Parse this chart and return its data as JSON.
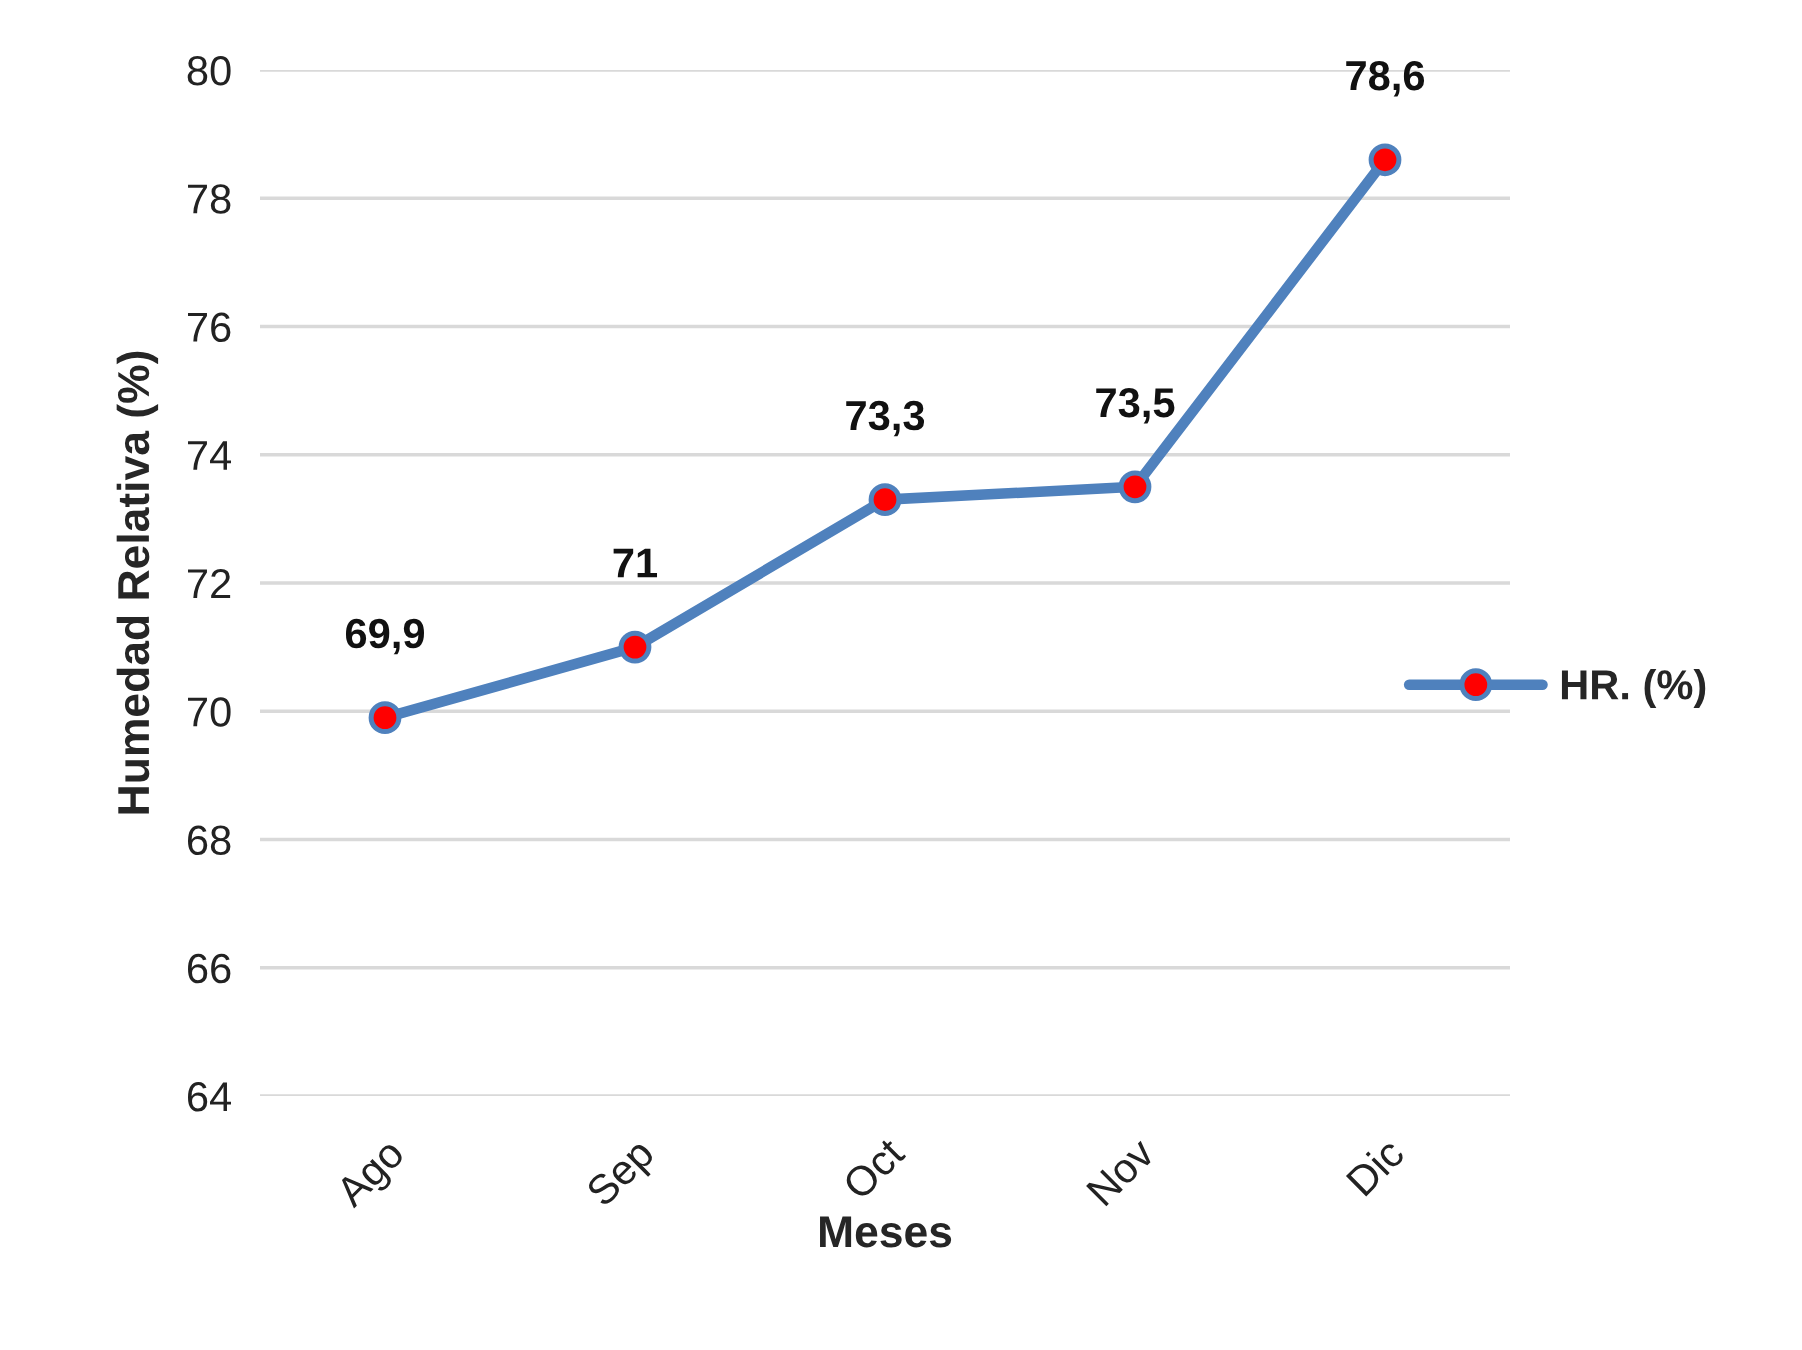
{
  "chart_data": {
    "type": "line",
    "xlabel": "Meses",
    "ylabel": "Humedad Relativa (%)",
    "categories": [
      "Ago",
      "Sep",
      "Oct",
      "Nov",
      "Dic"
    ],
    "series": [
      {
        "name": "HR. (%)",
        "color": "#4f81bd",
        "colors": [
          "#ff0000",
          "#ff0000",
          "#ff0000",
          "#ff0000",
          "#ff0000"
        ],
        "values": [
          69.9,
          71,
          73.3,
          73.5,
          78.6
        ],
        "value_labels": [
          "69,9",
          "71",
          "73,3",
          "73,5",
          "78,6"
        ]
      }
    ],
    "ylim": [
      64,
      80
    ],
    "yticks": [
      64,
      66,
      68,
      70,
      72,
      74,
      76,
      78,
      80
    ],
    "grid": "y",
    "legend": "right",
    "marker": "circle",
    "line_style": "solid"
  }
}
